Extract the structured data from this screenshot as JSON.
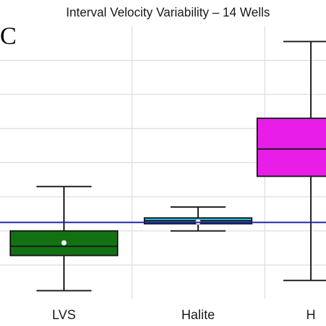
{
  "chart_data": {
    "type": "box",
    "title": "Interval Velocity Variability – 14 Wells",
    "panel_label": "C",
    "xlabel": "",
    "ylabel": "",
    "categories": [
      "LVS",
      "Halite",
      "H"
    ],
    "ylim": [
      0,
      8
    ],
    "grid": true,
    "reference_line": {
      "y": 2.25,
      "color": "#1a1aa8"
    },
    "boxes": [
      {
        "category": "LVS",
        "whisker_low": 0.25,
        "q1": 1.28,
        "median": 1.55,
        "q3": 2.0,
        "whisker_high": 3.3,
        "mean": 1.65,
        "color": "#127212"
      },
      {
        "category": "Halite",
        "whisker_low": 2.0,
        "q1": 2.21,
        "median": 2.3,
        "q3": 2.38,
        "whisker_high": 2.7,
        "mean": 2.26,
        "color": "#29c4e0"
      },
      {
        "category": "H",
        "whisker_low": 0.55,
        "q1": 3.6,
        "median": 4.4,
        "q3": 5.3,
        "whisker_high": 7.55,
        "mean": null,
        "color": "#e81ee8"
      }
    ]
  }
}
